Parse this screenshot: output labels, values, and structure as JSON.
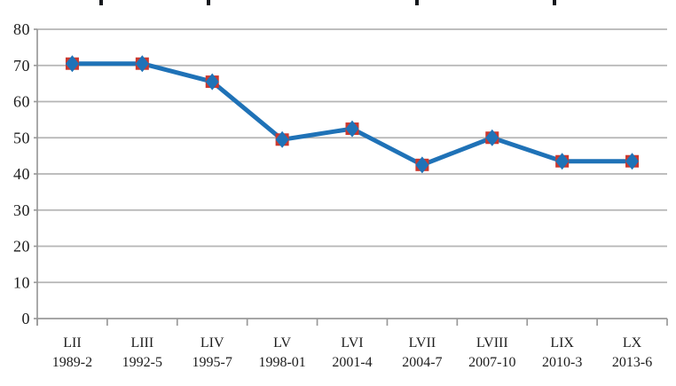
{
  "page": {
    "background": "#ffffff"
  },
  "chart_data": {
    "type": "line",
    "title": "",
    "title_visible": false,
    "categories": [
      "LII",
      "LIII",
      "LIV",
      "LV",
      "LVI",
      "LVII",
      "LVIII",
      "LIX",
      "LX"
    ],
    "category_sublabels": [
      "1989-2",
      "1992-5",
      "1995-7",
      "1998-01",
      "2001-4",
      "2004-7",
      "2007-10",
      "2010-3",
      "2013-6"
    ],
    "series": [
      {
        "name": "series-1",
        "values": [
          70.5,
          70.5,
          65.5,
          49.5,
          52.5,
          42.5,
          50,
          43.5,
          43.5
        ]
      }
    ],
    "ylim": [
      0,
      80
    ],
    "ytick_step": 10,
    "ytick_labels": [
      "0",
      "10",
      "20",
      "30",
      "40",
      "50",
      "60",
      "70",
      "80"
    ],
    "xlabel": "",
    "ylabel": "",
    "grid": true,
    "legend": false,
    "marker_style": "red-square-with-blue-diamond",
    "colors": {
      "line": "#1F72B7",
      "marker_square": "#CB382E",
      "marker_diamond": "#1F72B7",
      "gridline": "#B5B5B5",
      "axis": "#9A9A9A",
      "label_text": "#1C1C1C"
    }
  }
}
